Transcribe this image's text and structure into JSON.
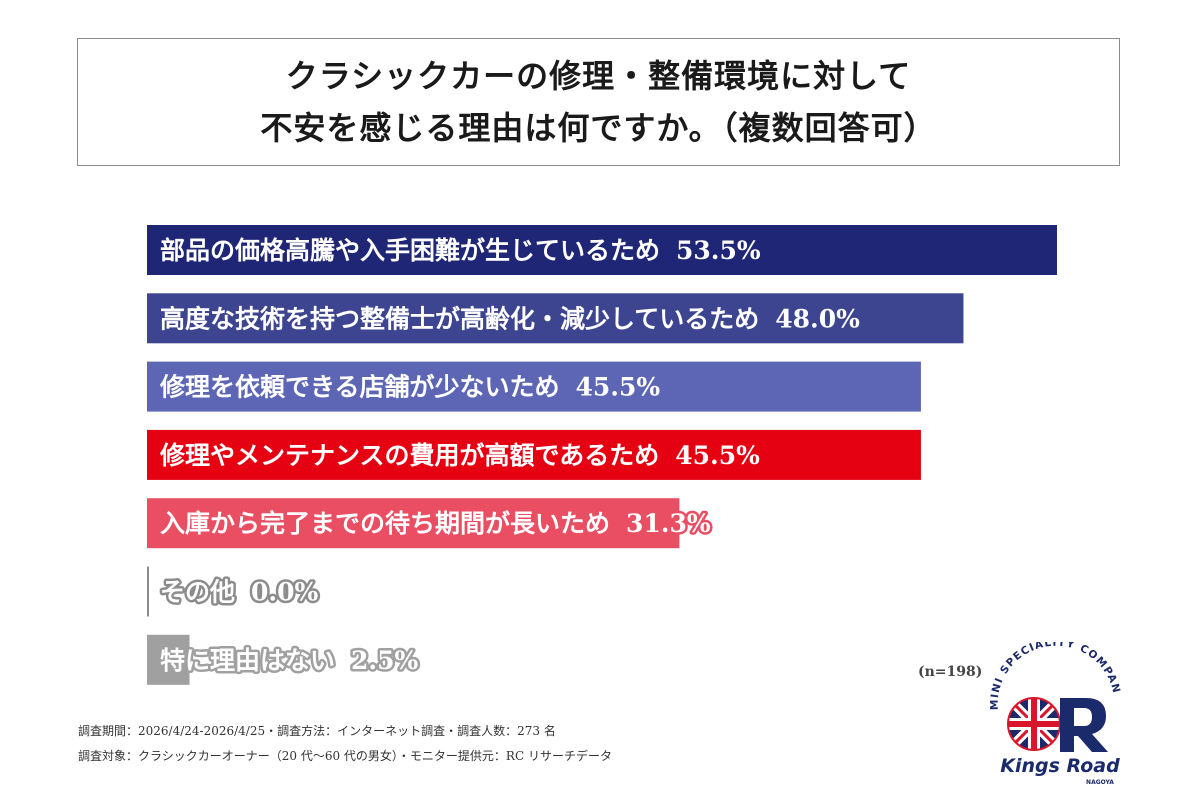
{
  "title": {
    "line1": "クラシックカーの修理・整備環境に対して",
    "line2": "不安を感じる理由は何ですか。（複数回答可）"
  },
  "chart_data": {
    "type": "bar",
    "orientation": "horizontal",
    "unit": "%",
    "xlim": [
      0,
      53.5
    ],
    "categories": [
      "部品の価格高騰や入手困難が生じているため",
      "高度な技術を持つ整備士が高齢化・減少しているため",
      "修理を依頼できる店舗が少ないため",
      "修理やメンテナンスの費用が高額であるため",
      "入庫から完了までの待ち期間が長いため",
      "その他",
      "特に理由はない"
    ],
    "values": [
      53.5,
      48.0,
      45.5,
      45.5,
      31.3,
      0.0,
      2.5
    ],
    "value_labels": [
      "53.5%",
      "48.0%",
      "45.5%",
      "45.5%",
      "31.3%",
      "0.0%",
      "2.5%"
    ],
    "colors": [
      "#1f2676",
      "#3d4590",
      "#5d66b5",
      "#e50012",
      "#e94e62",
      "#8c8c8c",
      "#a0a0a0"
    ],
    "grid": false,
    "legend": "none"
  },
  "sample_size": "(n=198)",
  "footnotes": [
    "調査期間：2026/4/24-2026/4/25・調査方法：インターネット調査・調査人数：273 名",
    "調査対象：クラシックカーオーナー（20 代〜60 代の男女）・モニター提供元：RC リサーチデータ"
  ],
  "logo": {
    "arc_text": "MINI SPECIALITY COMPANY",
    "brand": "Kings Road",
    "city": "NAGOYA",
    "colors": {
      "navy": "#1b2a6b",
      "red": "#d8152a"
    }
  }
}
